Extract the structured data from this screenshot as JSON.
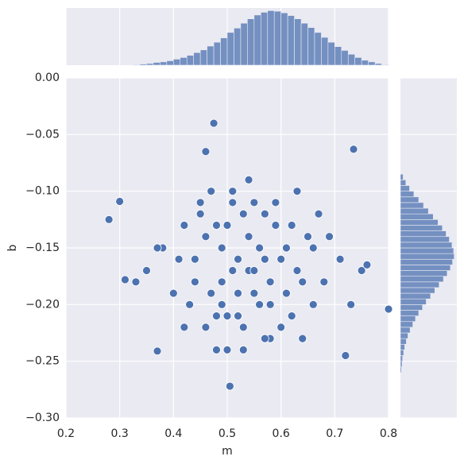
{
  "chart_data": [
    {
      "type": "scatter",
      "xlabel": "m",
      "ylabel": "b",
      "color": "#4c72b0",
      "grid": true,
      "xlim": [
        0.2,
        0.8
      ],
      "ylim": [
        -0.3,
        0
      ],
      "xticks": [
        0.2,
        0.3,
        0.4,
        0.5,
        0.6,
        0.7,
        0.8
      ],
      "yticks": [
        {
          "value": 0,
          "label": "0.00"
        },
        {
          "value": -0.05,
          "label": "−0.05"
        },
        {
          "value": -0.1,
          "label": "−0.10"
        },
        {
          "value": -0.15,
          "label": "−0.15"
        },
        {
          "value": -0.2,
          "label": "−0.20"
        },
        {
          "value": -0.25,
          "label": "−0.25"
        },
        {
          "value": -0.3,
          "label": "−0.30"
        }
      ],
      "x": [
        0.52,
        0.48,
        0.55,
        0.61,
        0.44,
        0.57,
        0.5,
        0.63,
        0.46,
        0.53,
        0.59,
        0.41,
        0.66,
        0.49,
        0.54,
        0.58,
        0.45,
        0.62,
        0.51,
        0.56,
        0.38,
        0.68,
        0.47,
        0.6,
        0.53,
        0.43,
        0.65,
        0.5,
        0.57,
        0.52,
        0.35,
        0.71,
        0.48,
        0.55,
        0.61,
        0.42,
        0.64,
        0.54,
        0.49,
        0.59,
        0.46,
        0.67,
        0.51,
        0.56,
        0.4,
        0.62,
        0.53,
        0.58,
        0.44,
        0.69,
        0.5,
        0.55,
        0.47,
        0.63,
        0.52,
        0.37,
        0.73,
        0.57,
        0.45,
        0.6,
        0.33,
        0.75,
        0.49,
        0.54,
        0.66,
        0.42,
        0.58,
        0.51,
        0.64,
        0.48,
        0.475,
        0.735,
        0.8,
        0.28,
        0.505,
        0.37,
        0.46,
        0.3,
        0.76,
        0.31,
        0.72
      ],
      "values": [
        -0.16,
        -0.13,
        -0.19,
        -0.15,
        -0.18,
        -0.12,
        -0.21,
        -0.17,
        -0.14,
        -0.22,
        -0.11,
        -0.16,
        -0.2,
        -0.18,
        -0.14,
        -0.23,
        -0.12,
        -0.13,
        -0.17,
        -0.2,
        -0.15,
        -0.18,
        -0.1,
        -0.22,
        -0.12,
        -0.2,
        -0.14,
        -0.24,
        -0.16,
        -0.19,
        -0.17,
        -0.16,
        -0.21,
        -0.11,
        -0.19,
        -0.13,
        -0.23,
        -0.17,
        -0.15,
        -0.13,
        -0.22,
        -0.12,
        -0.1,
        -0.15,
        -0.19,
        -0.21,
        -0.24,
        -0.18,
        -0.16,
        -0.14,
        -0.13,
        -0.17,
        -0.19,
        -0.1,
        -0.21,
        -0.15,
        -0.2,
        -0.23,
        -0.11,
        -0.16,
        -0.18,
        -0.17,
        -0.2,
        -0.09,
        -0.15,
        -0.22,
        -0.2,
        -0.11,
        -0.18,
        -0.24,
        -0.04,
        -0.063,
        -0.204,
        -0.125,
        -0.272,
        -0.241,
        -0.065,
        -0.109,
        -0.165,
        -0.178,
        -0.245
      ]
    },
    {
      "type": "histogram",
      "orientation": "vertical",
      "color": "#4c72b0",
      "ylim": [
        0,
        105
      ],
      "bins": [
        0.3,
        0.3125,
        0.325,
        0.3375,
        0.35,
        0.3625,
        0.375,
        0.3875,
        0.4,
        0.4125,
        0.425,
        0.4375,
        0.45,
        0.4625,
        0.475,
        0.4875,
        0.5,
        0.5125,
        0.525,
        0.5375,
        0.55,
        0.5625,
        0.575,
        0.5875,
        0.6,
        0.6125,
        0.625,
        0.6375,
        0.65,
        0.6625,
        0.675,
        0.6875,
        0.7,
        0.7125,
        0.725,
        0.7375,
        0.75,
        0.7625,
        0.775,
        0.7875,
        0.8
      ],
      "values": [
        0,
        0,
        1,
        2,
        3,
        5,
        6,
        8,
        11,
        14,
        18,
        23,
        28,
        35,
        42,
        50,
        60,
        68,
        77,
        85,
        92,
        97,
        100,
        99,
        96,
        91,
        85,
        77,
        69,
        60,
        51,
        42,
        34,
        27,
        20,
        14,
        9,
        6,
        3,
        1
      ]
    },
    {
      "type": "histogram",
      "orientation": "horizontal",
      "color": "#4c72b0",
      "xlim": [
        0,
        105
      ],
      "bins": [
        -0.26,
        -0.255,
        -0.25,
        -0.245,
        -0.24,
        -0.235,
        -0.23,
        -0.225,
        -0.22,
        -0.215,
        -0.21,
        -0.205,
        -0.2,
        -0.195,
        -0.19,
        -0.185,
        -0.18,
        -0.175,
        -0.17,
        -0.165,
        -0.16,
        -0.155,
        -0.15,
        -0.145,
        -0.14,
        -0.135,
        -0.13,
        -0.125,
        -0.12,
        -0.115,
        -0.11,
        -0.105,
        -0.1,
        -0.095,
        -0.09,
        -0.085
      ],
      "values": [
        2,
        3,
        4,
        6,
        8,
        11,
        14,
        18,
        23,
        28,
        34,
        41,
        48,
        56,
        64,
        72,
        80,
        87,
        93,
        97,
        100,
        99,
        96,
        91,
        85,
        78,
        70,
        61,
        52,
        43,
        34,
        25,
        17,
        10,
        5
      ]
    }
  ]
}
